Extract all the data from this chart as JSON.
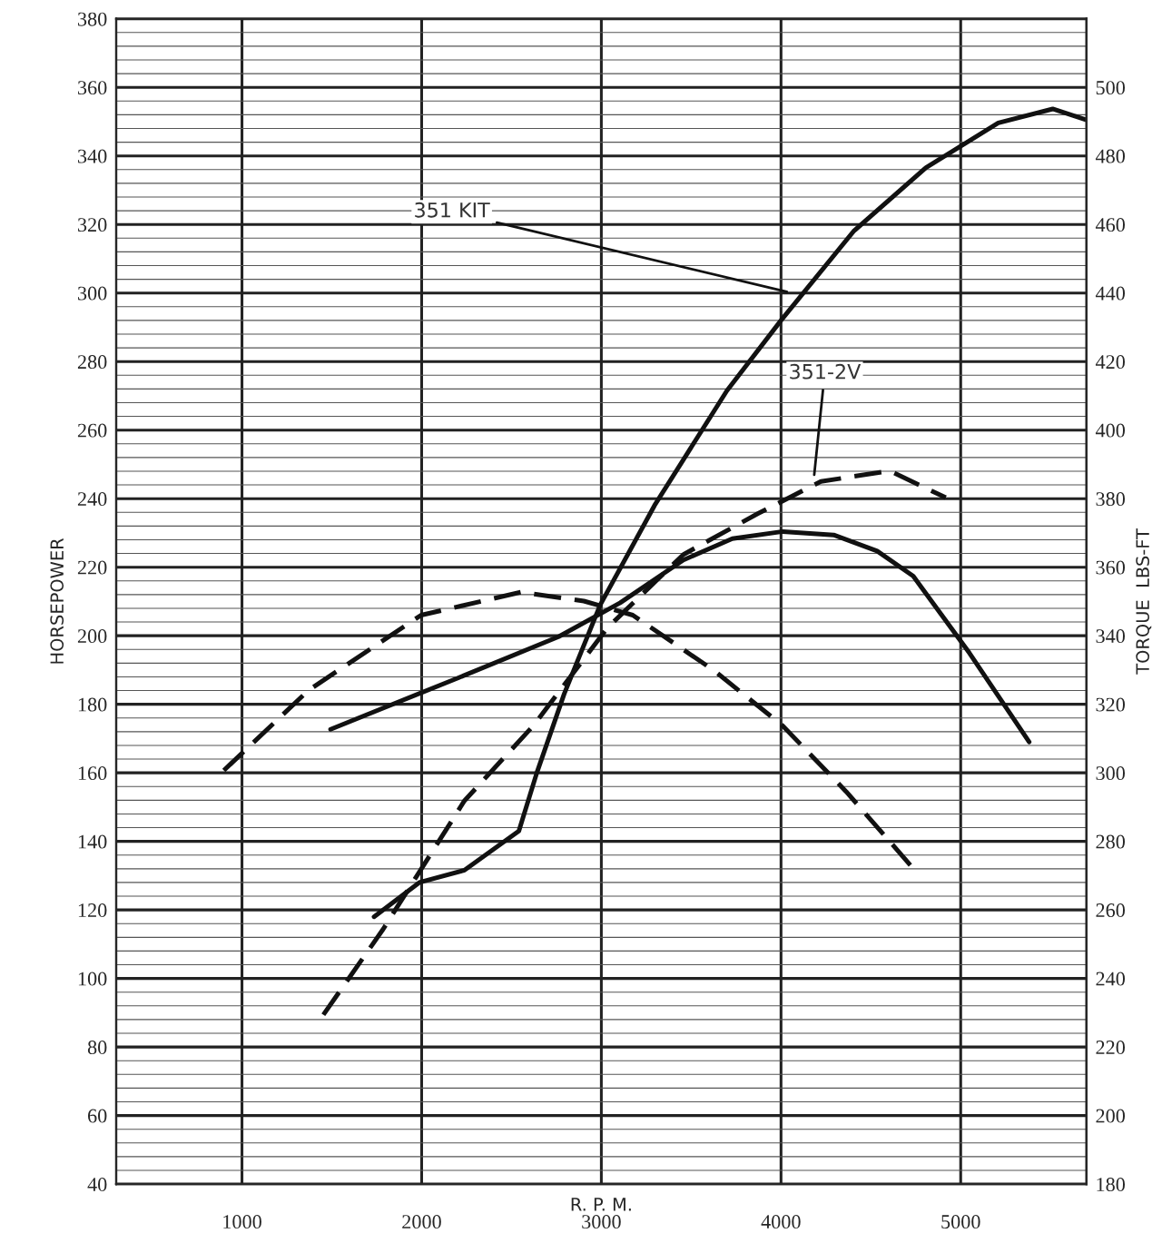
{
  "chart_data": {
    "type": "line",
    "xlabel": "R. P. M.",
    "ylabel": "HORSEPOWER",
    "y2label": "TORQUE  LBS-FT",
    "xlim": [
      300,
      5700
    ],
    "xticks": [
      1000,
      2000,
      3000,
      4000,
      5000
    ],
    "ylim": [
      40,
      380
    ],
    "yticks": [
      40,
      60,
      80,
      100,
      120,
      140,
      160,
      180,
      200,
      220,
      240,
      260,
      280,
      300,
      320,
      340,
      360,
      380
    ],
    "y2lim": [
      180,
      520
    ],
    "y2ticks": [
      180,
      200,
      220,
      240,
      260,
      280,
      300,
      320,
      340,
      360,
      380,
      400,
      420,
      440,
      460,
      480,
      500
    ],
    "grid": true,
    "marker": "none",
    "series": [
      {
        "color": "#111111",
        "line_style": "solid",
        "x": [
          1735,
          1987,
          2239,
          2541,
          2641,
          2793,
          2994,
          3296,
          3699,
          4000,
          4404,
          4807,
          5209,
          5512,
          5693
        ],
        "values": [
          118,
          128,
          131.6,
          143,
          160,
          183,
          209,
          238,
          271.5,
          292,
          318,
          336.6,
          349.6,
          353.7,
          350.6
        ]
      },
      {
        "color": "#111111",
        "line_style": "solid",
        "axis": "y2",
        "x": [
          1493,
          2208,
          2762,
          3105,
          3457,
          3729,
          4010,
          4293,
          4535,
          4736,
          5048,
          5381
        ],
        "values": [
          312.7,
          327.8,
          339.7,
          349.6,
          362.1,
          368.3,
          370.4,
          369.4,
          364.7,
          357.4,
          335,
          309
        ]
      },
      {
        "color": "#111111",
        "line_style": "dashed",
        "x": [
          1453,
          1786,
          2239,
          2621,
          3034,
          3457,
          3870,
          4222,
          4605,
          4917
        ],
        "values": [
          89.4,
          114.4,
          151.9,
          173.7,
          202.3,
          223.7,
          235.6,
          245,
          248.1,
          240.3
        ]
      },
      {
        "color": "#111111",
        "line_style": "dashed",
        "axis": "y2",
        "x": [
          899,
          1371,
          1997,
          2551,
          2903,
          3175,
          3628,
          4010,
          4363,
          4736
        ],
        "values": [
          300.7,
          324.1,
          346,
          352.7,
          350.1,
          346,
          329.8,
          313.7,
          294.5,
          272.1
        ]
      }
    ],
    "annotations": [
      {
        "text": "351 KIT",
        "x": 4060,
        "y": 300
      },
      {
        "text": "351-2V",
        "x": 4182,
        "y": 245.5
      }
    ]
  }
}
